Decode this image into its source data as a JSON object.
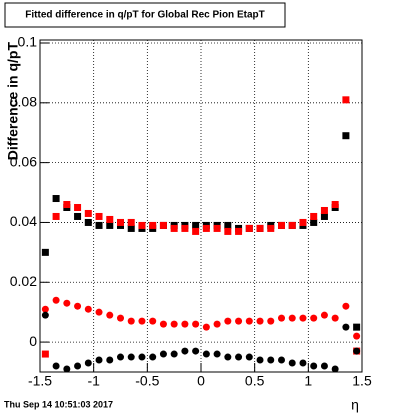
{
  "chart_data": {
    "type": "scatter",
    "title": "Fitted difference in q/pT for Global Rec Pion EtapT",
    "y_label": "Difference in q/pT",
    "x_label": "η",
    "timestamp": "Thu Sep 14 10:51:03 2017",
    "x": [
      -1.45,
      -1.35,
      -1.25,
      -1.15,
      -1.05,
      -0.95,
      -0.85,
      -0.75,
      -0.65,
      -0.55,
      -0.45,
      -0.35,
      -0.25,
      -0.15,
      -0.05,
      0.05,
      0.15,
      0.25,
      0.35,
      0.45,
      0.55,
      0.65,
      0.75,
      0.85,
      0.95,
      1.05,
      1.15,
      1.25,
      1.35,
      1.45
    ],
    "series": [
      {
        "name": "black-upper",
        "color": "#000000",
        "marker": "square",
        "values": [
          0.03,
          0.048,
          0.045,
          0.042,
          0.04,
          0.039,
          0.039,
          0.039,
          0.038,
          0.038,
          0.038,
          0.039,
          0.039,
          0.039,
          0.039,
          0.039,
          0.039,
          0.039,
          0.038,
          0.038,
          0.038,
          0.039,
          0.039,
          0.039,
          0.039,
          0.04,
          0.042,
          0.045,
          0.069,
          0.005
        ]
      },
      {
        "name": "red-upper",
        "color": "#ff0000",
        "marker": "square",
        "values": [
          -0.004,
          0.042,
          0.046,
          0.045,
          0.043,
          0.042,
          0.041,
          0.04,
          0.04,
          0.039,
          0.039,
          0.039,
          0.038,
          0.038,
          0.037,
          0.038,
          0.038,
          0.037,
          0.037,
          0.038,
          0.038,
          0.038,
          0.039,
          0.039,
          0.04,
          0.042,
          0.044,
          0.046,
          0.081,
          -0.003
        ]
      },
      {
        "name": "red-lower",
        "color": "#ff0000",
        "marker": "circle",
        "values": [
          0.011,
          0.014,
          0.013,
          0.012,
          0.011,
          0.01,
          0.009,
          0.008,
          0.007,
          0.007,
          0.007,
          0.006,
          0.006,
          0.006,
          0.006,
          0.005,
          0.006,
          0.007,
          0.007,
          0.007,
          0.007,
          0.007,
          0.008,
          0.008,
          0.008,
          0.008,
          0.009,
          0.008,
          0.012,
          0.002
        ]
      },
      {
        "name": "black-lower",
        "color": "#000000",
        "marker": "circle",
        "values": [
          0.009,
          -0.008,
          -0.009,
          -0.008,
          -0.007,
          -0.006,
          -0.006,
          -0.005,
          -0.005,
          -0.005,
          -0.005,
          -0.004,
          -0.004,
          -0.003,
          -0.003,
          -0.004,
          -0.004,
          -0.005,
          -0.005,
          -0.005,
          -0.006,
          -0.006,
          -0.006,
          -0.007,
          -0.007,
          -0.008,
          -0.008,
          -0.009,
          0.005,
          -0.003
        ]
      }
    ],
    "xlim": [
      -1.5,
      1.5
    ],
    "ylim": [
      -0.01,
      0.101
    ],
    "xticks": [
      -1.5,
      -1,
      -0.5,
      0,
      0.5,
      1,
      1.5
    ],
    "yticks": [
      0,
      0.02,
      0.04,
      0.06,
      0.08,
      0.1
    ],
    "grid": true
  }
}
